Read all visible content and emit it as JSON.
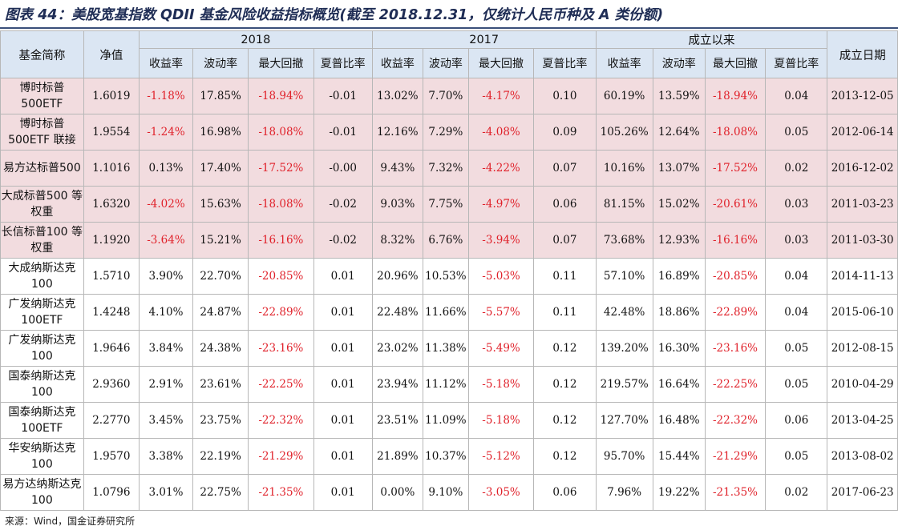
{
  "title": "图表 44：美股宽基指数 QDII 基金风险收益指标概览(截至 2018.12.31，仅统计人民币种及 A 类份额)",
  "header": {
    "name": "基金简称",
    "nav": "净值",
    "groups": [
      "2018",
      "2017",
      "成立以来"
    ],
    "metrics": [
      "收益率",
      "波动率",
      "最大回撤",
      "夏普比率"
    ],
    "inception": "成立日期"
  },
  "rows": [
    {
      "name": "博时标普500ETF",
      "nav": "1.6019",
      "y2018": [
        "-1.18%",
        "17.85%",
        "-18.94%",
        "-0.01"
      ],
      "y2017": [
        "13.02%",
        "7.70%",
        "-4.17%",
        "0.10"
      ],
      "since": [
        "60.19%",
        "13.59%",
        "-18.94%",
        "0.04"
      ],
      "date": "2013-12-05",
      "highlight": true
    },
    {
      "name": "博时标普500ETF 联接",
      "nav": "1.9554",
      "y2018": [
        "-1.24%",
        "16.98%",
        "-18.08%",
        "-0.01"
      ],
      "y2017": [
        "12.16%",
        "7.29%",
        "-4.08%",
        "0.09"
      ],
      "since": [
        "105.26%",
        "12.64%",
        "-18.08%",
        "0.05"
      ],
      "date": "2012-06-14",
      "highlight": true
    },
    {
      "name": "易方达标普500",
      "nav": "1.1016",
      "y2018": [
        "0.13%",
        "17.40%",
        "-17.52%",
        "-0.00"
      ],
      "y2017": [
        "9.43%",
        "7.32%",
        "-4.22%",
        "0.07"
      ],
      "since": [
        "10.16%",
        "13.07%",
        "-17.52%",
        "0.02"
      ],
      "date": "2016-12-02",
      "highlight": true
    },
    {
      "name": "大成标普500 等权重",
      "nav": "1.6320",
      "y2018": [
        "-4.02%",
        "15.63%",
        "-18.08%",
        "-0.02"
      ],
      "y2017": [
        "9.03%",
        "7.75%",
        "-4.97%",
        "0.06"
      ],
      "since": [
        "81.15%",
        "15.02%",
        "-20.61%",
        "0.03"
      ],
      "date": "2011-03-23",
      "highlight": true
    },
    {
      "name": "长信标普100 等权重",
      "nav": "1.1920",
      "y2018": [
        "-3.64%",
        "15.21%",
        "-16.16%",
        "-0.02"
      ],
      "y2017": [
        "8.32%",
        "6.76%",
        "-3.94%",
        "0.07"
      ],
      "since": [
        "73.68%",
        "12.93%",
        "-16.16%",
        "0.03"
      ],
      "date": "2011-03-30",
      "highlight": true
    },
    {
      "name": "大成纳斯达克 100",
      "nav": "1.5710",
      "y2018": [
        "3.90%",
        "22.70%",
        "-20.85%",
        "0.01"
      ],
      "y2017": [
        "20.96%",
        "10.53%",
        "-5.03%",
        "0.11"
      ],
      "since": [
        "57.10%",
        "16.89%",
        "-20.85%",
        "0.04"
      ],
      "date": "2014-11-13",
      "highlight": false
    },
    {
      "name": "广发纳斯达克 100ETF",
      "nav": "1.4248",
      "y2018": [
        "4.10%",
        "24.87%",
        "-22.89%",
        "0.01"
      ],
      "y2017": [
        "22.48%",
        "11.66%",
        "-5.57%",
        "0.11"
      ],
      "since": [
        "42.48%",
        "18.86%",
        "-22.89%",
        "0.04"
      ],
      "date": "2015-06-10",
      "highlight": false
    },
    {
      "name": "广发纳斯达克 100",
      "nav": "1.9646",
      "y2018": [
        "3.84%",
        "24.38%",
        "-23.16%",
        "0.01"
      ],
      "y2017": [
        "23.02%",
        "11.38%",
        "-5.49%",
        "0.12"
      ],
      "since": [
        "139.20%",
        "16.30%",
        "-23.16%",
        "0.05"
      ],
      "date": "2012-08-15",
      "highlight": false
    },
    {
      "name": "国泰纳斯达克 100",
      "nav": "2.9360",
      "y2018": [
        "2.91%",
        "23.61%",
        "-22.25%",
        "0.01"
      ],
      "y2017": [
        "23.94%",
        "11.12%",
        "-5.18%",
        "0.12"
      ],
      "since": [
        "219.57%",
        "16.64%",
        "-22.25%",
        "0.05"
      ],
      "date": "2010-04-29",
      "highlight": false
    },
    {
      "name": "国泰纳斯达克 100ETF",
      "nav": "2.2770",
      "y2018": [
        "3.45%",
        "23.75%",
        "-22.32%",
        "0.01"
      ],
      "y2017": [
        "23.51%",
        "11.09%",
        "-5.18%",
        "0.12"
      ],
      "since": [
        "127.70%",
        "16.48%",
        "-22.32%",
        "0.06"
      ],
      "date": "2013-04-25",
      "highlight": false
    },
    {
      "name": "华安纳斯达克 100",
      "nav": "1.9570",
      "y2018": [
        "3.38%",
        "22.19%",
        "-21.29%",
        "0.01"
      ],
      "y2017": [
        "21.89%",
        "10.37%",
        "-5.12%",
        "0.12"
      ],
      "since": [
        "95.70%",
        "15.44%",
        "-21.29%",
        "0.05"
      ],
      "date": "2013-08-02",
      "highlight": false
    },
    {
      "name": "易方达纳斯达克 100",
      "nav": "1.0796",
      "y2018": [
        "3.01%",
        "22.75%",
        "-21.35%",
        "0.01"
      ],
      "y2017": [
        "0.00%",
        "9.10%",
        "-3.05%",
        "0.06"
      ],
      "since": [
        "7.96%",
        "19.22%",
        "-21.35%",
        "0.02"
      ],
      "date": "2017-06-23",
      "highlight": false
    }
  ],
  "colors": {
    "negative": "#e0212a",
    "header_bg": "#dbe6f3",
    "highlight_bg": "#f2dcdf"
  },
  "source": "来源：Wind，国金证券研究所"
}
